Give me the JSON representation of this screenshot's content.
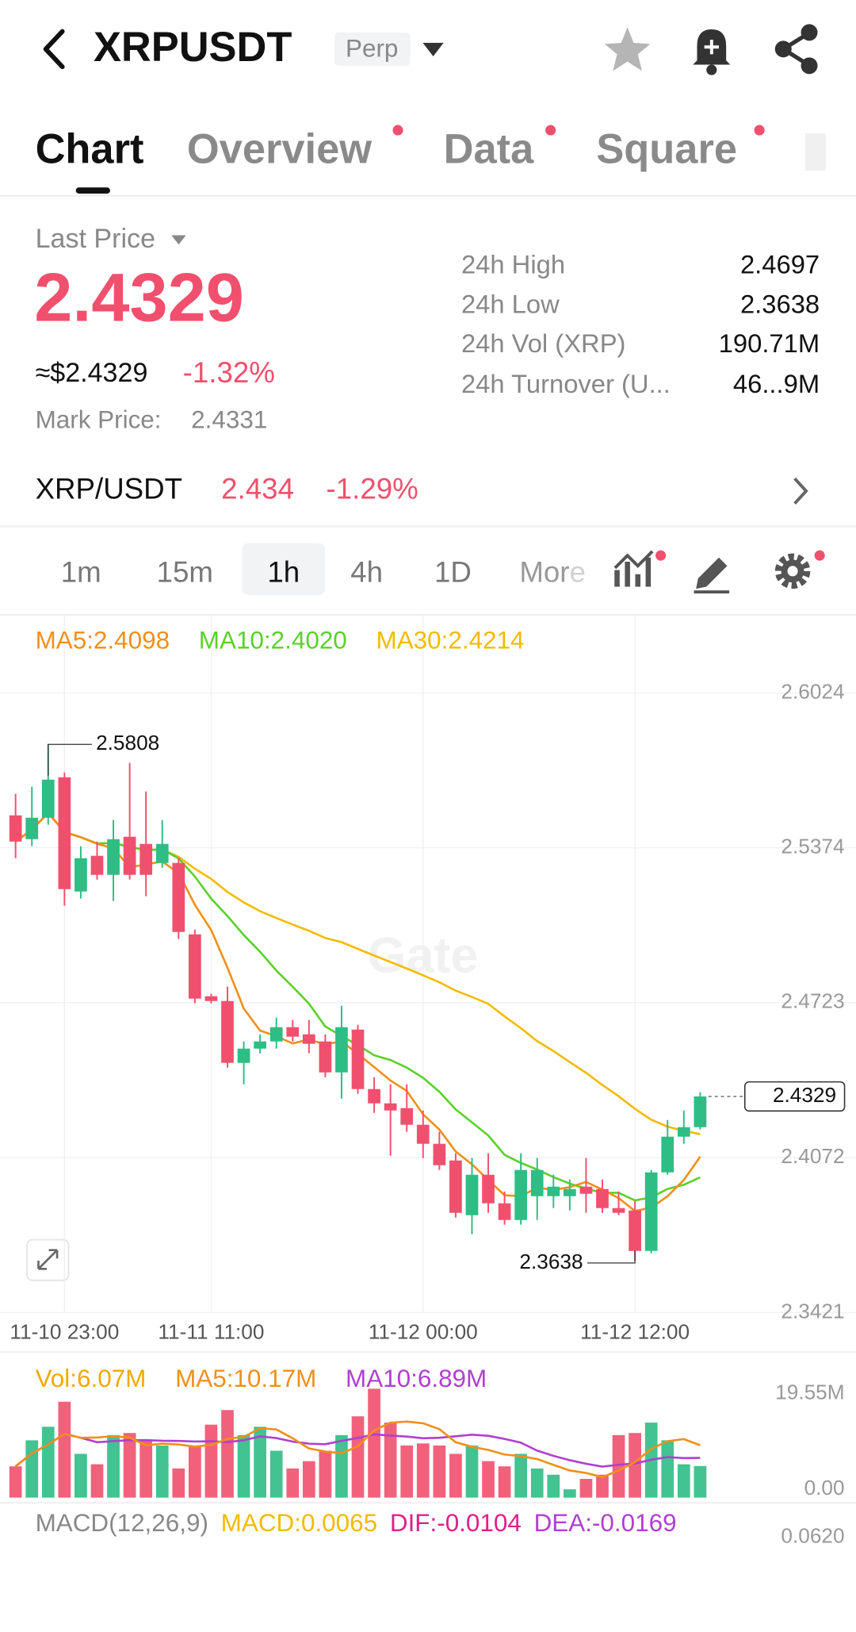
{
  "header": {
    "symbol": "XRPUSDT",
    "contract": "Perp"
  },
  "tabs": [
    "Chart",
    "Overview",
    "Data",
    "Square"
  ],
  "price": {
    "label": "Last Price",
    "last": "2.4329",
    "usd": "≈$2.4329",
    "change": "-1.32%",
    "mark_label": "Mark Price:",
    "mark": "2.4331"
  },
  "stats": [
    {
      "label": "24h High",
      "value": "2.4697"
    },
    {
      "label": "24h Low",
      "value": "2.3638"
    },
    {
      "label": "24h Vol (XRP)",
      "value": "190.71M"
    },
    {
      "label": "24h Turnover (U...",
      "value": "46...9M"
    }
  ],
  "spot": {
    "pair": "XRP/USDT",
    "price": "2.434",
    "change": "-1.29%"
  },
  "intervals": [
    "1m",
    "15m",
    "1h",
    "4h",
    "1D",
    "More"
  ],
  "chart_data": {
    "type": "candlestick",
    "watermark": "Gate",
    "ma_labels": [
      {
        "text": "MA5:2.4098",
        "color": "#f0901a"
      },
      {
        "text": "MA10:2.4020",
        "color": "#5ad12a"
      },
      {
        "text": "MA30:2.4214",
        "color": "#f2bb00"
      }
    ],
    "up_color": "#2ebd85",
    "down_color": "#f0506e",
    "ylim": [
      2.3408,
      2.6191
    ],
    "yticks": [
      2.6024,
      2.5374,
      2.4723,
      2.4072,
      2.3421
    ],
    "xticks": [
      {
        "value": 3,
        "label": "11-10 23:00"
      },
      {
        "value": 12,
        "label": "11-11 11:00"
      },
      {
        "value": 25,
        "label": "11-12 00:00"
      },
      {
        "value": 38,
        "label": "11-12 12:00"
      }
    ],
    "max_label": "2.5808",
    "min_label": "2.3638",
    "last_label": "2.4329",
    "candles": [
      [
        2.551,
        2.56,
        2.533,
        2.54
      ],
      [
        2.541,
        2.563,
        2.538,
        2.55
      ],
      [
        2.55,
        2.5808,
        2.547,
        2.566
      ],
      [
        2.567,
        2.569,
        2.513,
        2.52
      ],
      [
        2.519,
        2.538,
        2.516,
        2.533
      ],
      [
        2.534,
        2.54,
        2.524,
        2.526
      ],
      [
        2.526,
        2.549,
        2.515,
        2.541
      ],
      [
        2.542,
        2.573,
        2.524,
        2.526
      ],
      [
        2.539,
        2.561,
        2.517,
        2.526
      ],
      [
        2.531,
        2.549,
        2.529,
        2.539
      ],
      [
        2.531,
        2.533,
        2.499,
        2.502
      ],
      [
        2.501,
        2.503,
        2.472,
        2.474
      ],
      [
        2.475,
        2.476,
        2.472,
        2.473
      ],
      [
        2.473,
        2.479,
        2.445,
        2.447
      ],
      [
        2.447,
        2.456,
        2.438,
        2.453
      ],
      [
        2.453,
        2.459,
        2.451,
        2.456
      ],
      [
        2.456,
        2.466,
        2.453,
        2.462
      ],
      [
        2.462,
        2.465,
        2.456,
        2.458
      ],
      [
        2.459,
        2.465,
        2.451,
        2.455
      ],
      [
        2.456,
        2.459,
        2.441,
        2.443
      ],
      [
        2.443,
        2.471,
        2.432,
        2.462
      ],
      [
        2.461,
        2.463,
        2.434,
        2.436
      ],
      [
        2.436,
        2.441,
        2.426,
        2.43
      ],
      [
        2.43,
        2.438,
        2.408,
        2.427
      ],
      [
        2.428,
        2.438,
        2.418,
        2.421
      ],
      [
        2.421,
        2.427,
        2.407,
        2.413
      ],
      [
        2.413,
        2.418,
        2.402,
        2.404
      ],
      [
        2.406,
        2.409,
        2.382,
        2.384
      ],
      [
        2.383,
        2.407,
        2.375,
        2.4
      ],
      [
        2.4,
        2.409,
        2.384,
        2.388
      ],
      [
        2.388,
        2.393,
        2.379,
        2.381
      ],
      [
        2.381,
        2.409,
        2.379,
        2.402
      ],
      [
        2.391,
        2.407,
        2.381,
        2.402
      ],
      [
        2.391,
        2.4,
        2.386,
        2.395
      ],
      [
        2.391,
        2.398,
        2.385,
        2.394
      ],
      [
        2.395,
        2.407,
        2.384,
        2.392
      ],
      [
        2.394,
        2.398,
        2.384,
        2.386
      ],
      [
        2.386,
        2.393,
        2.383,
        2.384
      ],
      [
        2.385,
        2.389,
        2.3638,
        2.368
      ],
      [
        2.368,
        2.402,
        2.367,
        2.401
      ],
      [
        2.401,
        2.423,
        2.4,
        2.416
      ],
      [
        2.416,
        2.427,
        2.413,
        2.42
      ],
      [
        2.42,
        2.4347,
        2.419,
        2.4329
      ]
    ]
  },
  "volume": {
    "labels": [
      {
        "text": "Vol:6.07M",
        "color": "#f2a900"
      },
      {
        "text": "MA5:10.17M",
        "color": "#f0901a"
      },
      {
        "text": "MA10:6.89M",
        "color": "#b040d0"
      }
    ],
    "ylim": [
      0,
      19.55
    ],
    "yticks": [
      {
        "value": 19.55,
        "label": "19.55M"
      },
      {
        "value": 0,
        "label": "0.00"
      }
    ],
    "values": [
      6.0,
      11.0,
      13.6,
      18.4,
      8.4,
      6.4,
      12.0,
      12.4,
      11.0,
      10.0,
      5.6,
      10.0,
      14.0,
      16.8,
      12.0,
      13.6,
      9.0,
      5.6,
      7.0,
      9.0,
      12.0,
      15.6,
      20.9,
      14.4,
      10.0,
      10.4,
      10.0,
      8.4,
      10.0,
      7.0,
      6.0,
      8.4,
      5.6,
      4.4,
      1.6,
      3.6,
      4.4,
      12.0,
      12.4,
      14.4,
      11.0,
      6.4,
      6.07
    ]
  },
  "macd": {
    "labels": [
      {
        "text": "MACD(12,26,9)",
        "color": "#888888"
      },
      {
        "text": "MACD:0.0065",
        "color": "#f2bb00"
      },
      {
        "text": "DIF:-0.0104",
        "color": "#e0208a"
      },
      {
        "text": "DEA:-0.0169",
        "color": "#b040d0"
      }
    ],
    "axis_label": "0.0620"
  }
}
